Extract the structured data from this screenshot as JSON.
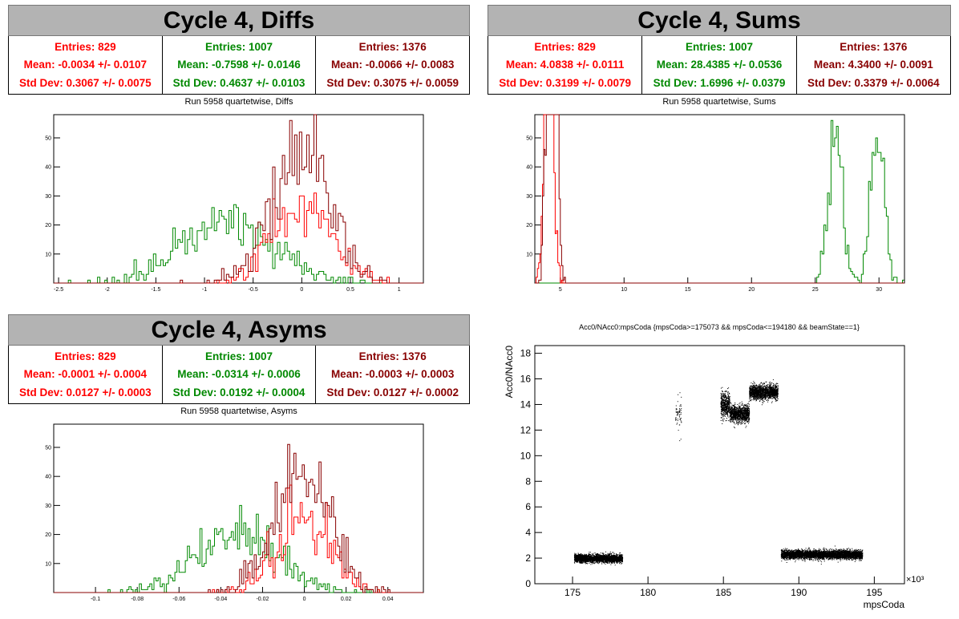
{
  "panels": {
    "diffs": {
      "title": "Cycle 4, Diffs",
      "subtitle": "Run 5958 quartetwise, Diffs",
      "stats": [
        {
          "entries": "Entries: 829",
          "mean": "Mean: -0.0034 +/- 0.0107",
          "std": "Std Dev: 0.3067 +/- 0.0075",
          "color": "#ff0000"
        },
        {
          "entries": "Entries: 1007",
          "mean": "Mean: -0.7598 +/- 0.0146",
          "std": "Std Dev: 0.4637 +/- 0.0103",
          "color": "#008800"
        },
        {
          "entries": "Entries: 1376",
          "mean": "Mean: -0.0066 +/- 0.0083",
          "std": "Std Dev: 0.3075 +/- 0.0059",
          "color": "#880000"
        }
      ]
    },
    "sums": {
      "title": "Cycle 4, Sums",
      "subtitle": "Run 5958 quartetwise, Sums",
      "stats": [
        {
          "entries": "Entries: 829",
          "mean": "Mean: 4.0838 +/- 0.0111",
          "std": "Std Dev: 0.3199 +/- 0.0079",
          "color": "#ff0000"
        },
        {
          "entries": "Entries: 1007",
          "mean": "Mean: 28.4385 +/- 0.0536",
          "std": "Std Dev: 1.6996 +/- 0.0379",
          "color": "#008800"
        },
        {
          "entries": "Entries: 1376",
          "mean": "Mean: 4.3400 +/- 0.0091",
          "std": "Std Dev: 0.3379 +/- 0.0064",
          "color": "#880000"
        }
      ]
    },
    "asyms": {
      "title": "Cycle 4, Asyms",
      "subtitle": "Run 5958 quartetwise, Asyms",
      "stats": [
        {
          "entries": "Entries: 829",
          "mean": "Mean: -0.0001 +/- 0.0004",
          "std": "Std Dev: 0.0127 +/- 0.0003",
          "color": "#ff0000"
        },
        {
          "entries": "Entries: 1007",
          "mean": "Mean: -0.0314 +/- 0.0006",
          "std": "Std Dev: 0.0192 +/- 0.0004",
          "color": "#008800"
        },
        {
          "entries": "Entries: 1376",
          "mean": "Mean: -0.0003 +/- 0.0003",
          "std": "Std Dev: 0.0127 +/- 0.0002",
          "color": "#880000"
        }
      ]
    },
    "scatter": {
      "title": "Acc0/NAcc0:mpsCoda {mpsCoda>=175073 && mpsCoda<=194180 && beamState==1}",
      "xlabel": "mpsCoda",
      "ylabel": "Acc0/NAcc0",
      "exponent": "×10³"
    }
  },
  "chart_data": [
    {
      "id": "diffs",
      "type": "histogram",
      "title": "Run 5958 quartetwise, Diffs",
      "xlim": [
        -2.55,
        1.25
      ],
      "ylim": [
        0,
        58
      ],
      "xticks": [
        -2.5,
        -2,
        -1.5,
        -1,
        -0.5,
        0,
        0.5,
        1
      ],
      "yticks": [
        10,
        20,
        30,
        40,
        50
      ],
      "series": [
        {
          "color": "#008800",
          "mean": -0.7598,
          "std": 0.4637,
          "entries": 1007,
          "bin": 0.025
        },
        {
          "color": "#ff0000",
          "mean": -0.0034,
          "std": 0.3067,
          "entries": 829,
          "bin": 0.025
        },
        {
          "color": "#880000",
          "mean": -0.0066,
          "std": 0.3075,
          "entries": 1376,
          "bin": 0.025
        }
      ]
    },
    {
      "id": "sums",
      "type": "histogram",
      "title": "Run 5958 quartetwise, Sums",
      "xlim": [
        3,
        32
      ],
      "ylim": [
        0,
        58
      ],
      "xticks": [
        5,
        10,
        15,
        20,
        25,
        30
      ],
      "yticks": [
        10,
        20,
        30,
        40,
        50
      ],
      "series": [
        {
          "color": "#008800",
          "mean": 28.4385,
          "std": 1.6996,
          "entries": 1007,
          "bin": 0.14,
          "bimodal": [
            26.6,
            29.9
          ]
        },
        {
          "color": "#ff0000",
          "mean": 4.0838,
          "std": 0.3199,
          "entries": 829,
          "bin": 0.1
        },
        {
          "color": "#880000",
          "mean": 4.34,
          "std": 0.3379,
          "entries": 1376,
          "bin": 0.1
        }
      ]
    },
    {
      "id": "asyms",
      "type": "histogram",
      "title": "Run 5958 quartetwise, Asyms",
      "xlim": [
        -0.12,
        0.057
      ],
      "ylim": [
        0,
        58
      ],
      "xticks": [
        -0.1,
        -0.08,
        -0.06,
        -0.04,
        -0.02,
        0,
        0.02,
        0.04
      ],
      "yticks": [
        10,
        20,
        30,
        40,
        50
      ],
      "series": [
        {
          "color": "#008800",
          "mean": -0.0314,
          "std": 0.0192,
          "entries": 1007,
          "bin": 0.001
        },
        {
          "color": "#ff0000",
          "mean": -0.0001,
          "std": 0.0127,
          "entries": 829,
          "bin": 0.001
        },
        {
          "color": "#880000",
          "mean": -0.0003,
          "std": 0.0127,
          "entries": 1376,
          "bin": 0.001
        }
      ]
    },
    {
      "id": "scatter",
      "type": "scatter",
      "title": "Acc0/NAcc0:mpsCoda {mpsCoda>=175073 && mpsCoda<=194180 && beamState==1}",
      "xlabel": "mpsCoda",
      "ylabel": "Acc0/NAcc0",
      "xlim": [
        172.5,
        197
      ],
      "ylim": [
        0,
        18.6
      ],
      "xticks": [
        175,
        180,
        185,
        190,
        195
      ],
      "yticks": [
        0,
        2,
        4,
        6,
        8,
        10,
        12,
        14,
        16,
        18
      ],
      "clusters": [
        {
          "x": [
            175.1,
            178.3
          ],
          "y": 2.0,
          "spread": 0.28
        },
        {
          "x": [
            181.8,
            182.2
          ],
          "y": 13.2,
          "spread": 1.3,
          "sparse": true
        },
        {
          "x": [
            184.8,
            185.4
          ],
          "y": 14.0,
          "spread": 0.9
        },
        {
          "x": [
            185.4,
            186.7
          ],
          "y": 13.3,
          "spread": 0.6
        },
        {
          "x": [
            186.7,
            188.6
          ],
          "y": 15.0,
          "spread": 0.5
        },
        {
          "x": [
            188.8,
            194.2
          ],
          "y": 2.3,
          "spread": 0.3
        }
      ]
    }
  ]
}
